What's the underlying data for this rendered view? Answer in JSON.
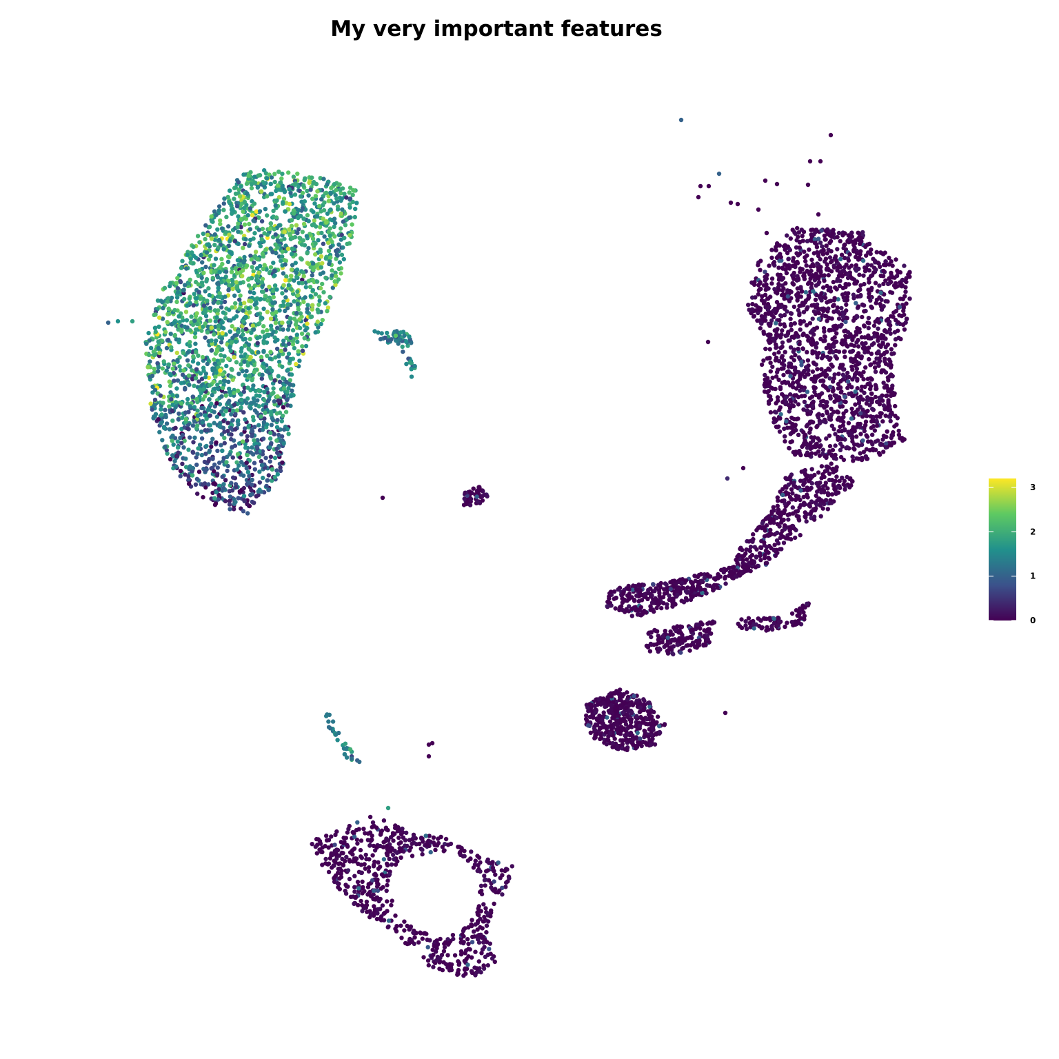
{
  "title": "My very important features",
  "chart_data": {
    "type": "scatter",
    "title": "My very important features",
    "xlabel": "",
    "ylabel": "",
    "grid": false,
    "axes_visible": false,
    "legend_placement": "right",
    "color_scale": {
      "palette": "viridis",
      "min": 0,
      "max": 3.2,
      "ticks": [
        0,
        1,
        2,
        3
      ],
      "tick_labels": [
        "0",
        "1",
        "2",
        "3"
      ],
      "colors": [
        "#440154",
        "#3b528b",
        "#21918c",
        "#5ec962",
        "#fde725"
      ]
    },
    "clusters": [
      {
        "name": "upper-left cluster",
        "expression_mean": 1.8,
        "expression_sd": 0.55
      },
      {
        "name": "right cluster",
        "expression_mean": 0.0,
        "expression_sd": 0.08
      },
      {
        "name": "lower ring cluster",
        "expression_mean": 0.0,
        "expression_sd": 0.08
      },
      {
        "name": "middle small cluster",
        "expression_mean": 0.05,
        "expression_sd": 0.15
      },
      {
        "name": "left-lower streak",
        "expression_mean": 1.4,
        "expression_sd": 0.35
      }
    ]
  }
}
